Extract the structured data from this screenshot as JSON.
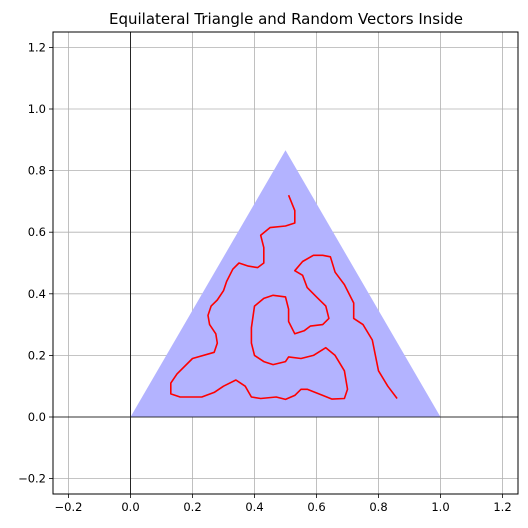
{
  "chart_data": {
    "type": "line",
    "title": "Equilateral Triangle and Random Vectors Inside",
    "xlabel": "",
    "ylabel": "",
    "xlim": [
      -0.25,
      1.25
    ],
    "ylim": [
      -0.25,
      1.25
    ],
    "grid": true,
    "legend": "none",
    "x_ticks": [
      -0.2,
      0.0,
      0.2,
      0.4,
      0.6,
      0.8,
      1.0,
      1.2
    ],
    "y_ticks": [
      -0.2,
      0.0,
      0.2,
      0.4,
      0.6,
      0.8,
      1.0,
      1.2
    ],
    "x_tick_labels": [
      "−0.2",
      "0.0",
      "0.2",
      "0.4",
      "0.6",
      "0.8",
      "1.0",
      "1.2"
    ],
    "y_tick_labels": [
      "−0.2",
      "0.0",
      "0.2",
      "0.4",
      "0.6",
      "0.8",
      "1.0",
      "1.2"
    ],
    "reference_lines": {
      "x": 0,
      "y": 0
    },
    "triangle": {
      "vertices": [
        [
          0,
          0
        ],
        [
          1,
          0
        ],
        [
          0.5,
          0.866
        ]
      ],
      "color": "#b3b3ff"
    },
    "path": {
      "color": "#ff0000",
      "points": [
        [
          0.51,
          0.72
        ],
        [
          0.53,
          0.67
        ],
        [
          0.53,
          0.63
        ],
        [
          0.5,
          0.62
        ],
        [
          0.45,
          0.615
        ],
        [
          0.42,
          0.59
        ],
        [
          0.43,
          0.55
        ],
        [
          0.43,
          0.5
        ],
        [
          0.41,
          0.485
        ],
        [
          0.38,
          0.49
        ],
        [
          0.35,
          0.5
        ],
        [
          0.33,
          0.48
        ],
        [
          0.31,
          0.44
        ],
        [
          0.3,
          0.41
        ],
        [
          0.28,
          0.38
        ],
        [
          0.26,
          0.36
        ],
        [
          0.25,
          0.33
        ],
        [
          0.255,
          0.3
        ],
        [
          0.275,
          0.27
        ],
        [
          0.28,
          0.24
        ],
        [
          0.27,
          0.21
        ],
        [
          0.2,
          0.19
        ],
        [
          0.15,
          0.14
        ],
        [
          0.13,
          0.11
        ],
        [
          0.13,
          0.075
        ],
        [
          0.16,
          0.065
        ],
        [
          0.23,
          0.065
        ],
        [
          0.27,
          0.08
        ],
        [
          0.3,
          0.1
        ],
        [
          0.34,
          0.12
        ],
        [
          0.37,
          0.1
        ],
        [
          0.39,
          0.065
        ],
        [
          0.42,
          0.06
        ],
        [
          0.47,
          0.065
        ],
        [
          0.5,
          0.057
        ],
        [
          0.53,
          0.07
        ],
        [
          0.55,
          0.09
        ],
        [
          0.57,
          0.09
        ],
        [
          0.62,
          0.07
        ],
        [
          0.65,
          0.058
        ],
        [
          0.69,
          0.06
        ],
        [
          0.7,
          0.09
        ],
        [
          0.69,
          0.15
        ],
        [
          0.66,
          0.2
        ],
        [
          0.63,
          0.225
        ],
        [
          0.59,
          0.2
        ],
        [
          0.55,
          0.19
        ],
        [
          0.51,
          0.195
        ],
        [
          0.5,
          0.18
        ],
        [
          0.46,
          0.17
        ],
        [
          0.43,
          0.18
        ],
        [
          0.4,
          0.2
        ],
        [
          0.39,
          0.24
        ],
        [
          0.39,
          0.29
        ],
        [
          0.4,
          0.36
        ],
        [
          0.43,
          0.385
        ],
        [
          0.46,
          0.395
        ],
        [
          0.5,
          0.39
        ],
        [
          0.51,
          0.35
        ],
        [
          0.51,
          0.31
        ],
        [
          0.53,
          0.27
        ],
        [
          0.56,
          0.28
        ],
        [
          0.58,
          0.295
        ],
        [
          0.62,
          0.3
        ],
        [
          0.64,
          0.32
        ],
        [
          0.63,
          0.36
        ],
        [
          0.6,
          0.39
        ],
        [
          0.57,
          0.42
        ],
        [
          0.555,
          0.46
        ],
        [
          0.53,
          0.475
        ],
        [
          0.555,
          0.505
        ],
        [
          0.59,
          0.525
        ],
        [
          0.62,
          0.525
        ],
        [
          0.645,
          0.52
        ],
        [
          0.66,
          0.47
        ],
        [
          0.69,
          0.43
        ],
        [
          0.72,
          0.37
        ],
        [
          0.72,
          0.32
        ],
        [
          0.75,
          0.3
        ],
        [
          0.78,
          0.25
        ],
        [
          0.8,
          0.15
        ],
        [
          0.83,
          0.1
        ],
        [
          0.86,
          0.06
        ]
      ]
    }
  }
}
